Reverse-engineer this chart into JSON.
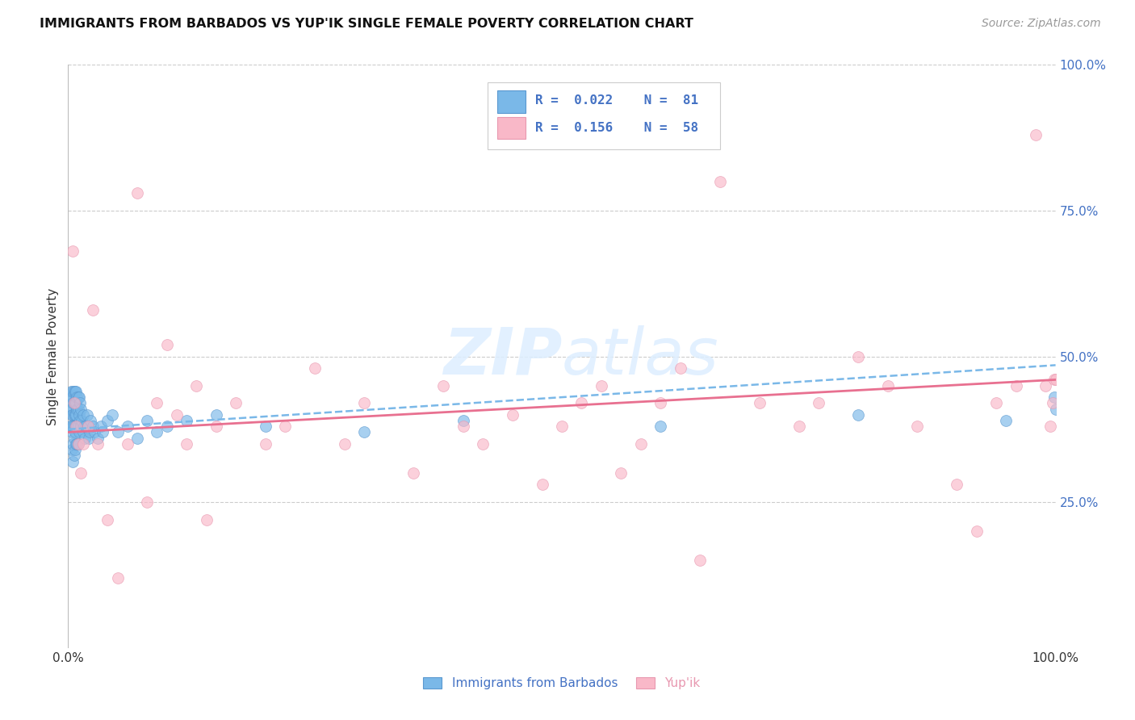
{
  "title": "IMMIGRANTS FROM BARBADOS VS YUP'IK SINGLE FEMALE POVERTY CORRELATION CHART",
  "source": "Source: ZipAtlas.com",
  "ylabel": "Single Female Poverty",
  "color_blue": "#7ab8e8",
  "color_blue_edge": "#5a98d0",
  "color_pink": "#f9b8c8",
  "color_pink_edge": "#e898b0",
  "trendline_blue_color": "#7ab8e8",
  "trendline_pink_color": "#e87090",
  "watermark": "ZIPatlas",
  "ytick_color": "#4472c4",
  "title_fontsize": 11.5,
  "source_fontsize": 10,
  "legend_text_color": "#4472c4",
  "blue_x": [
    0.001,
    0.002,
    0.002,
    0.003,
    0.003,
    0.003,
    0.004,
    0.004,
    0.004,
    0.004,
    0.005,
    0.005,
    0.005,
    0.005,
    0.005,
    0.005,
    0.006,
    0.006,
    0.006,
    0.006,
    0.006,
    0.006,
    0.007,
    0.007,
    0.007,
    0.007,
    0.007,
    0.008,
    0.008,
    0.008,
    0.008,
    0.008,
    0.009,
    0.009,
    0.009,
    0.009,
    0.01,
    0.01,
    0.01,
    0.01,
    0.011,
    0.011,
    0.011,
    0.012,
    0.012,
    0.013,
    0.013,
    0.014,
    0.015,
    0.015,
    0.016,
    0.017,
    0.018,
    0.019,
    0.02,
    0.021,
    0.022,
    0.023,
    0.025,
    0.027,
    0.03,
    0.033,
    0.035,
    0.04,
    0.045,
    0.05,
    0.06,
    0.07,
    0.08,
    0.09,
    0.1,
    0.12,
    0.15,
    0.2,
    0.3,
    0.4,
    0.6,
    0.8,
    0.95,
    1.0,
    0.999
  ],
  "blue_y": [
    0.43,
    0.41,
    0.38,
    0.44,
    0.41,
    0.38,
    0.43,
    0.4,
    0.37,
    0.34,
    0.44,
    0.42,
    0.4,
    0.38,
    0.35,
    0.32,
    0.44,
    0.42,
    0.4,
    0.38,
    0.36,
    0.33,
    0.44,
    0.42,
    0.4,
    0.37,
    0.34,
    0.44,
    0.42,
    0.4,
    0.38,
    0.35,
    0.43,
    0.41,
    0.38,
    0.35,
    0.43,
    0.41,
    0.38,
    0.35,
    0.43,
    0.4,
    0.37,
    0.42,
    0.39,
    0.41,
    0.38,
    0.39,
    0.4,
    0.37,
    0.38,
    0.36,
    0.38,
    0.4,
    0.38,
    0.36,
    0.37,
    0.39,
    0.38,
    0.37,
    0.36,
    0.38,
    0.37,
    0.39,
    0.4,
    0.37,
    0.38,
    0.36,
    0.39,
    0.37,
    0.38,
    0.39,
    0.4,
    0.38,
    0.37,
    0.39,
    0.38,
    0.4,
    0.39,
    0.41,
    0.43
  ],
  "pink_x": [
    0.005,
    0.006,
    0.008,
    0.01,
    0.013,
    0.015,
    0.02,
    0.025,
    0.03,
    0.04,
    0.05,
    0.06,
    0.08,
    0.1,
    0.11,
    0.12,
    0.13,
    0.15,
    0.17,
    0.2,
    0.22,
    0.25,
    0.28,
    0.3,
    0.35,
    0.38,
    0.4,
    0.42,
    0.45,
    0.48,
    0.5,
    0.52,
    0.54,
    0.58,
    0.6,
    0.62,
    0.66,
    0.7,
    0.74,
    0.76,
    0.8,
    0.83,
    0.86,
    0.9,
    0.92,
    0.94,
    0.96,
    0.98,
    0.99,
    0.995,
    0.997,
    0.999,
    1.0,
    0.07,
    0.09,
    0.14,
    0.56,
    0.64
  ],
  "pink_y": [
    0.68,
    0.42,
    0.38,
    0.35,
    0.3,
    0.35,
    0.38,
    0.58,
    0.35,
    0.22,
    0.12,
    0.35,
    0.25,
    0.52,
    0.4,
    0.35,
    0.45,
    0.38,
    0.42,
    0.35,
    0.38,
    0.48,
    0.35,
    0.42,
    0.3,
    0.45,
    0.38,
    0.35,
    0.4,
    0.28,
    0.38,
    0.42,
    0.45,
    0.35,
    0.42,
    0.48,
    0.8,
    0.42,
    0.38,
    0.42,
    0.5,
    0.45,
    0.38,
    0.28,
    0.2,
    0.42,
    0.45,
    0.88,
    0.45,
    0.38,
    0.42,
    0.46,
    0.46,
    0.78,
    0.42,
    0.22,
    0.3,
    0.15
  ]
}
